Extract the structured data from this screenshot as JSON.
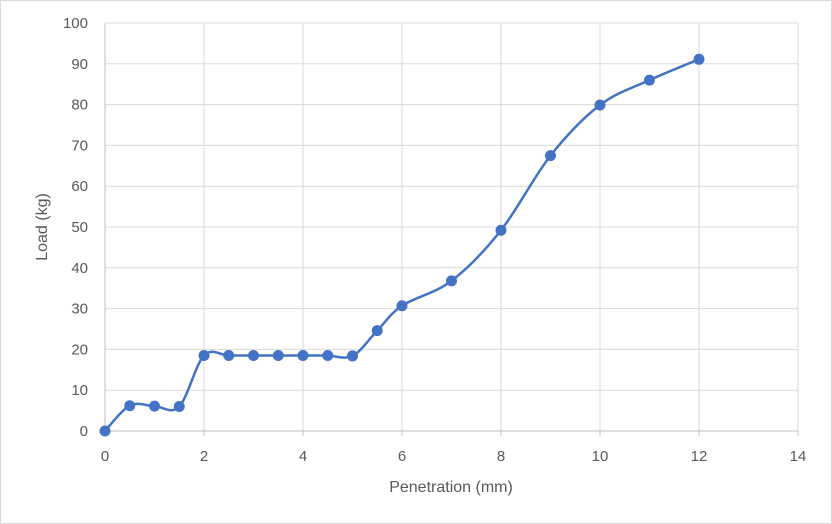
{
  "chart_data": {
    "type": "scatter",
    "title": "",
    "xlabel": "Penetration (mm)",
    "ylabel": "Load (kg)",
    "xlim": [
      0,
      14
    ],
    "ylim": [
      0,
      100
    ],
    "x_ticks": [
      0,
      2,
      4,
      6,
      8,
      10,
      12,
      14
    ],
    "y_ticks": [
      0,
      10,
      20,
      30,
      40,
      50,
      60,
      70,
      80,
      90,
      100
    ],
    "grid": true,
    "legend": "none",
    "line_style": "smoothed line with markers",
    "series_color": "#4472c4",
    "grid_color": "#d9d9d9",
    "series": [
      {
        "x": [
          0,
          0.5,
          1,
          1.5,
          2,
          2.5,
          3,
          3.5,
          4,
          4.5,
          5,
          5.5,
          6,
          7,
          8,
          9,
          10,
          11,
          12
        ],
        "y": [
          0,
          6.2,
          6.1,
          6.0,
          18.5,
          18.5,
          18.5,
          18.5,
          18.5,
          18.5,
          18.4,
          24.6,
          30.7,
          36.8,
          49.2,
          67.5,
          79.9,
          86.0,
          91.1
        ]
      }
    ]
  }
}
